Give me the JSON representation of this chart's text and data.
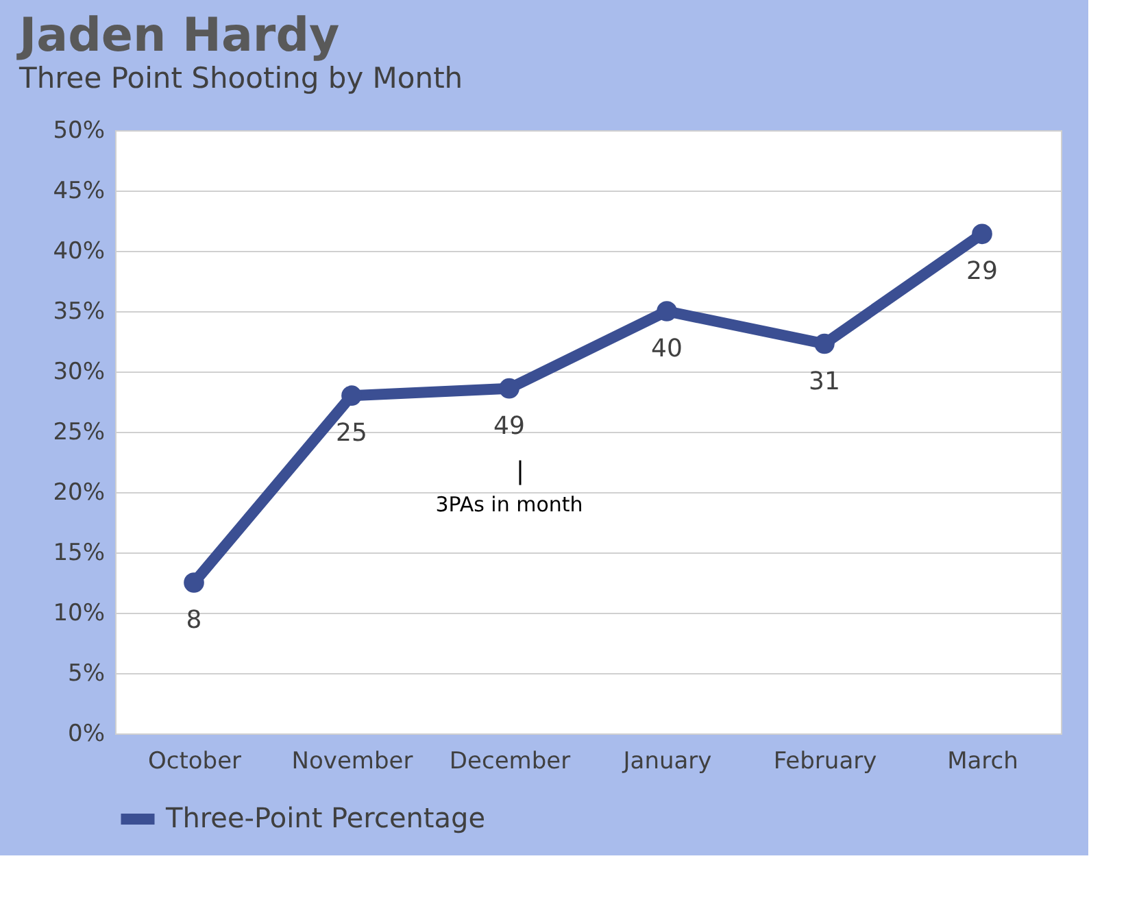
{
  "chart_data": {
    "type": "line",
    "title": "Jaden Hardy",
    "subtitle": "Three Point Shooting by Month",
    "categories": [
      "October",
      "November",
      "December",
      "January",
      "February",
      "March"
    ],
    "series": [
      {
        "name": "Three-Point Percentage",
        "color": "#3b4f93",
        "values": [
          12.5,
          28.0,
          28.6,
          35.0,
          32.3,
          41.4
        ]
      }
    ],
    "ylim": [
      0,
      50
    ],
    "yticks": [
      {
        "value": 0,
        "label": "0%"
      },
      {
        "value": 5,
        "label": "5%"
      },
      {
        "value": 10,
        "label": "10%"
      },
      {
        "value": 15,
        "label": "15%"
      },
      {
        "value": 20,
        "label": "20%"
      },
      {
        "value": 25,
        "label": "25%"
      },
      {
        "value": 30,
        "label": "30%"
      },
      {
        "value": 35,
        "label": "35%"
      },
      {
        "value": 40,
        "label": "40%"
      },
      {
        "value": 45,
        "label": "45%"
      },
      {
        "value": 50,
        "label": "50%"
      }
    ],
    "annotations": [
      {
        "text": "8",
        "x": "October",
        "y": 12.5
      },
      {
        "text": "25",
        "x": "November",
        "y": 28.0
      },
      {
        "text": "49",
        "x": "December",
        "y": 28.6
      },
      {
        "text": "40",
        "x": "January",
        "y": 35.0
      },
      {
        "text": "31",
        "x": "February",
        "y": 32.3
      },
      {
        "text": "29",
        "x": "March",
        "y": 41.4
      },
      "3PAs in month"
    ],
    "grid": "y",
    "legend": "bottom",
    "marker": "circle",
    "line_style": "solid"
  }
}
